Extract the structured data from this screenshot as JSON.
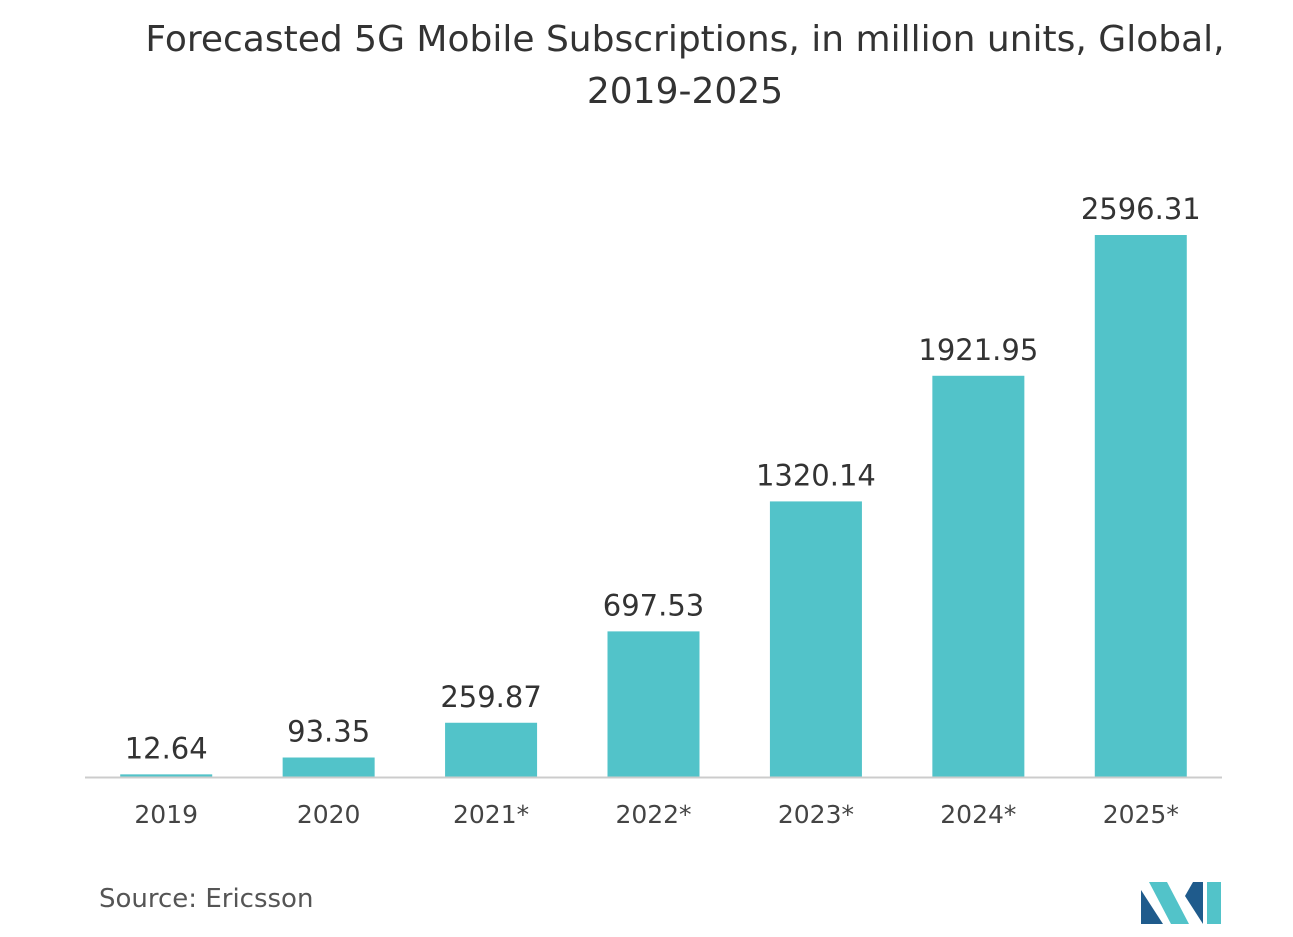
{
  "title": "Forecasted 5G Mobile Subscriptions, in million units, Global,\n2019-2025",
  "source": "Source: Ericsson",
  "colors": {
    "bar": "#52c3c9",
    "axis": "#cccccc",
    "text": "#333333",
    "logo_dark": "#1f5b8c",
    "logo_light": "#52c3c9"
  },
  "logo": {
    "icon": "mordor-intelligence-logo-icon"
  },
  "chart_data": {
    "type": "bar",
    "title": "Forecasted 5G Mobile Subscriptions, in million units, Global, 2019-2025",
    "categories": [
      "2019",
      "2020",
      "2021*",
      "2022*",
      "2023*",
      "2024*",
      "2025*"
    ],
    "values": [
      12.64,
      93.35,
      259.87,
      697.53,
      1320.14,
      1921.95,
      2596.31
    ],
    "value_labels": [
      "12.64",
      "93.35",
      "259.87",
      "697.53",
      "1320.14",
      "1921.95",
      "2596.31"
    ],
    "xlabel": "",
    "ylabel": "",
    "ylim": [
      0,
      2596.31
    ],
    "grid": false,
    "legend": "none"
  }
}
